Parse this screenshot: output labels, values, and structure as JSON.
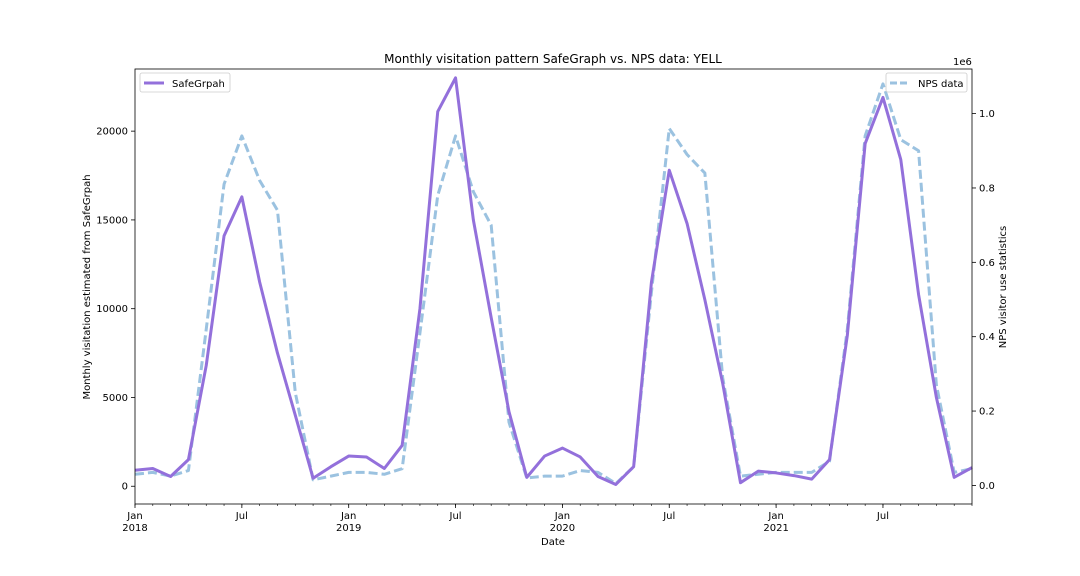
{
  "chart_data": {
    "type": "line",
    "title": "Monthly visitation pattern SafeGraph vs. NPS data: YELL",
    "xlabel": "Date",
    "ylabel_left": "Monthly visitation estimated from SafeGrpah",
    "ylabel_right": "NPS visitor use statistics",
    "right_axis_multiplier": "1e6",
    "x_range": [
      "2018-01",
      "2021-12"
    ],
    "ylim_left": [
      -1000,
      23500
    ],
    "ylim_right": [
      -0.05,
      1.12
    ],
    "yticks_left": [
      0,
      5000,
      10000,
      15000,
      20000
    ],
    "yticks_right": [
      0.0,
      0.2,
      0.4,
      0.6,
      0.8,
      1.0
    ],
    "xtick_labels": [
      {
        "month": "2018-01",
        "line1": "Jan",
        "line2": "2018"
      },
      {
        "month": "2018-07",
        "line1": "Jul",
        "line2": ""
      },
      {
        "month": "2019-01",
        "line1": "Jan",
        "line2": "2019"
      },
      {
        "month": "2019-07",
        "line1": "Jul",
        "line2": ""
      },
      {
        "month": "2020-01",
        "line1": "Jan",
        "line2": "2020"
      },
      {
        "month": "2020-07",
        "line1": "Jul",
        "line2": ""
      },
      {
        "month": "2021-01",
        "line1": "Jan",
        "line2": "2021"
      },
      {
        "month": "2021-07",
        "line1": "Jul",
        "line2": ""
      }
    ],
    "months": [
      "2018-01",
      "2018-02",
      "2018-03",
      "2018-04",
      "2018-05",
      "2018-06",
      "2018-07",
      "2018-08",
      "2018-09",
      "2018-10",
      "2018-11",
      "2018-12",
      "2019-01",
      "2019-02",
      "2019-03",
      "2019-04",
      "2019-05",
      "2019-06",
      "2019-07",
      "2019-08",
      "2019-09",
      "2019-10",
      "2019-11",
      "2019-12",
      "2020-01",
      "2020-02",
      "2020-03",
      "2020-04",
      "2020-05",
      "2020-06",
      "2020-07",
      "2020-08",
      "2020-09",
      "2020-10",
      "2020-11",
      "2020-12",
      "2021-01",
      "2021-02",
      "2021-03",
      "2021-04",
      "2021-05",
      "2021-06",
      "2021-07",
      "2021-08",
      "2021-09",
      "2021-10",
      "2021-11",
      "2021-12"
    ],
    "series": [
      {
        "name": "SafeGrpah",
        "axis": "left",
        "color": "#9370DB",
        "style": "solid",
        "values": [
          900,
          1000,
          550,
          1500,
          6800,
          14100,
          16300,
          11500,
          7500,
          4000,
          450,
          1100,
          1700,
          1650,
          1000,
          2300,
          10000,
          21100,
          23000,
          15000,
          9500,
          4200,
          500,
          1700,
          2150,
          1650,
          550,
          100,
          1100,
          11500,
          17800,
          14800,
          10500,
          5800,
          200,
          850,
          750,
          600,
          400,
          1500,
          8500,
          19300,
          21900,
          18400,
          10800,
          5000,
          500,
          1050
        ]
      },
      {
        "name": "NPS data",
        "axis": "right",
        "color": "#9BC2E0",
        "style": "dashed",
        "values": [
          0.03,
          0.035,
          0.025,
          0.04,
          0.42,
          0.81,
          0.94,
          0.82,
          0.74,
          0.25,
          0.015,
          0.025,
          0.035,
          0.035,
          0.03,
          0.045,
          0.41,
          0.78,
          0.94,
          0.79,
          0.7,
          0.17,
          0.02,
          0.025,
          0.025,
          0.04,
          0.035,
          0.005,
          0.05,
          0.52,
          0.96,
          0.89,
          0.84,
          0.29,
          0.025,
          0.03,
          0.035,
          0.035,
          0.035,
          0.065,
          0.42,
          0.94,
          1.08,
          0.93,
          0.9,
          0.27,
          0.035,
          0.045
        ]
      }
    ],
    "legend_left_position": "top-left",
    "legend_right_position": "top-right",
    "grid": false
  }
}
